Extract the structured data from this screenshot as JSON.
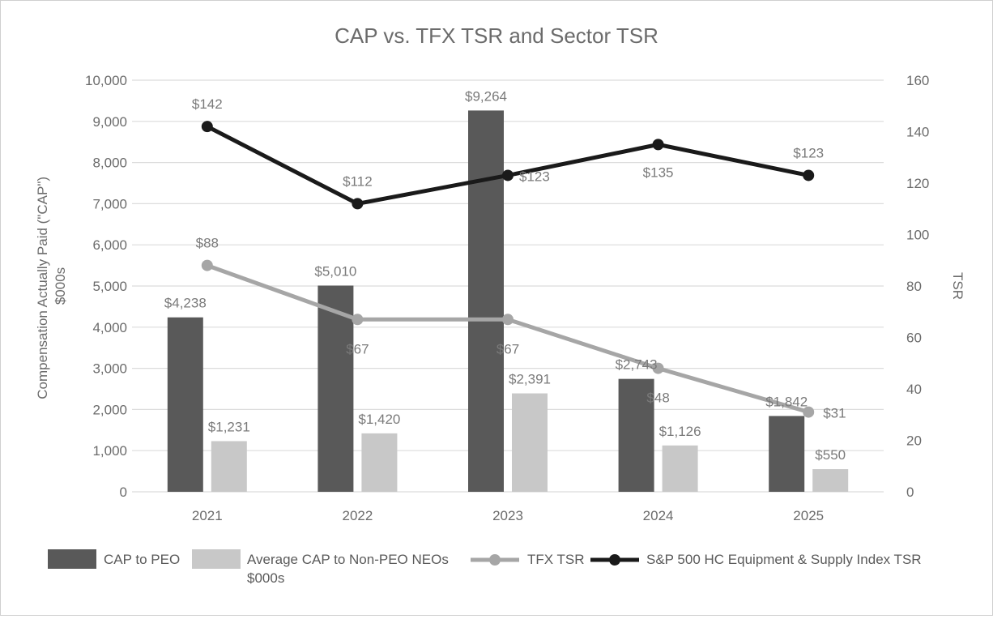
{
  "chart_data": {
    "type": "bar",
    "title": "CAP vs. TFX TSR and Sector TSR",
    "categories": [
      "2021",
      "2022",
      "2023",
      "2024",
      "2025"
    ],
    "ylabel_left": "Compensation Actually Paid (\"CAP\") $000s",
    "ylabel_right": "TSR",
    "ylim_left": [
      0,
      10000
    ],
    "ylim_right": [
      0,
      160
    ],
    "left_ticks": [
      "0",
      "1,000",
      "2,000",
      "3,000",
      "4,000",
      "5,000",
      "6,000",
      "7,000",
      "8,000",
      "9,000",
      "10,000"
    ],
    "right_ticks": [
      "0",
      "20",
      "40",
      "60",
      "80",
      "100",
      "120",
      "140",
      "160"
    ],
    "grid": true,
    "legend_position": "bottom",
    "series": [
      {
        "name": "CAP to PEO",
        "kind": "bar",
        "axis": "left",
        "color": "#595959",
        "values": [
          4238,
          5010,
          9264,
          2743,
          1842
        ],
        "labels": [
          "$4,238",
          "$5,010",
          "$9,264",
          "$2,743",
          "$1,842"
        ]
      },
      {
        "name": "Average CAP to Non-PEO NEOs $000s",
        "kind": "bar",
        "axis": "left",
        "color": "#c8c8c8",
        "values": [
          1231,
          1420,
          2391,
          1126,
          550
        ],
        "labels": [
          "$1,231",
          "$1,420",
          "$2,391",
          "$1,126",
          "$550"
        ]
      },
      {
        "name": "TFX TSR",
        "kind": "line",
        "axis": "right",
        "color": "#a6a6a6",
        "values": [
          88,
          67,
          67,
          48,
          31
        ],
        "labels": [
          "$88",
          "$67",
          "$67",
          "$48",
          "$31"
        ]
      },
      {
        "name": "S&P 500 HC Equipment & Supply Index TSR",
        "kind": "line",
        "axis": "right",
        "color": "#1a1a1a",
        "values": [
          142,
          112,
          123,
          135,
          123
        ],
        "labels": [
          "$142",
          "$112",
          "$123",
          "$135",
          "$123"
        ]
      }
    ]
  }
}
